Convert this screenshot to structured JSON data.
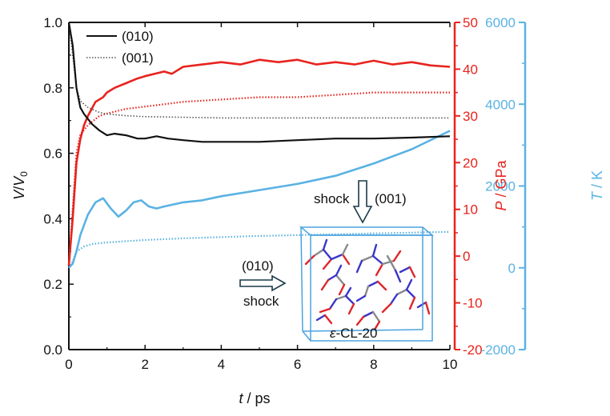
{
  "colors": {
    "black": "#111111",
    "red": "#e8231e",
    "blue": "#5ab2e3",
    "dotted_gray": "#555555",
    "crystal_box": "#4aa3e0",
    "atom_n": "#3b36c9",
    "atom_o": "#e0252a",
    "atom_c": "#8a8a8a"
  },
  "chart_data": {
    "type": "line",
    "x_axis": {
      "label_italic": "t",
      "label_rest": " / ps",
      "range": [
        0,
        10
      ],
      "ticks": [
        "0",
        "2",
        "4",
        "6",
        "8",
        "10"
      ]
    },
    "y_left": {
      "label_italic": "V",
      "label_mid": "/",
      "label_italic2": "V",
      "label_sub": "0",
      "range": [
        0.0,
        1.0
      ],
      "ticks": [
        "0.0",
        "0.2",
        "0.4",
        "0.6",
        "0.8",
        "1.0"
      ]
    },
    "y_right_p": {
      "label_italic": "P",
      "label_rest": " / GPa",
      "range": [
        -20,
        50
      ],
      "ticks": [
        "-20",
        "-10",
        "0",
        "10",
        "20",
        "30",
        "40",
        "50"
      ]
    },
    "y_right_t": {
      "label_italic": "T",
      "label_rest": " / K",
      "range": [
        -2000,
        6000
      ],
      "ticks": [
        "-2000",
        "0",
        "2000",
        "4000",
        "6000"
      ]
    },
    "legend": {
      "position": "top-left",
      "entries": [
        {
          "label": "(010)",
          "style": "solid"
        },
        {
          "label": "(001)",
          "style": "dotted"
        }
      ]
    },
    "series": [
      {
        "axis": "left",
        "direction": "(010)",
        "style": "solid",
        "color": "black",
        "x": [
          0,
          0.1,
          0.2,
          0.3,
          0.4,
          0.6,
          0.8,
          1.0,
          1.2,
          1.5,
          1.8,
          2.0,
          2.3,
          2.6,
          3.0,
          3.5,
          4.0,
          5.0,
          6.0,
          7.0,
          8.0,
          9.0,
          10.0
        ],
        "y": [
          1.0,
          0.93,
          0.8,
          0.74,
          0.72,
          0.69,
          0.67,
          0.655,
          0.66,
          0.655,
          0.645,
          0.645,
          0.652,
          0.645,
          0.64,
          0.635,
          0.635,
          0.635,
          0.64,
          0.645,
          0.645,
          0.648,
          0.652
        ]
      },
      {
        "axis": "left",
        "direction": "(001)",
        "style": "dotted",
        "color": "dotted_gray",
        "x": [
          0,
          0.1,
          0.2,
          0.3,
          0.5,
          0.8,
          1.0,
          1.5,
          2.0,
          3.0,
          4.0,
          5.0,
          6.0,
          7.0,
          8.0,
          9.0,
          10.0
        ],
        "y": [
          1.0,
          0.9,
          0.8,
          0.76,
          0.74,
          0.725,
          0.72,
          0.715,
          0.712,
          0.71,
          0.708,
          0.708,
          0.708,
          0.708,
          0.708,
          0.708,
          0.708
        ]
      },
      {
        "axis": "p",
        "direction": "(010)",
        "style": "solid",
        "color": "red",
        "x": [
          0,
          0.1,
          0.2,
          0.3,
          0.4,
          0.5,
          0.7,
          0.9,
          1.0,
          1.2,
          1.5,
          1.8,
          2.0,
          2.5,
          2.7,
          3.0,
          3.5,
          4.0,
          4.5,
          5.0,
          5.5,
          6.0,
          6.5,
          7.0,
          7.5,
          8.0,
          8.5,
          9.0,
          9.5,
          10.0
        ],
        "y": [
          -2,
          8,
          20,
          25,
          28,
          30,
          33,
          34,
          35,
          36,
          37,
          38,
          38.5,
          39.5,
          39,
          40.5,
          41,
          41.5,
          41,
          42,
          41.5,
          42,
          41,
          41.5,
          41,
          41.8,
          41,
          41.5,
          40.8,
          40.5
        ]
      },
      {
        "axis": "p",
        "direction": "(001)",
        "style": "dotted",
        "color": "red",
        "x": [
          0,
          0.1,
          0.2,
          0.3,
          0.5,
          0.8,
          1.0,
          1.5,
          2.0,
          2.5,
          3.0,
          4.0,
          5.0,
          6.0,
          7.0,
          8.0,
          9.0,
          10.0
        ],
        "y": [
          -2,
          10,
          22,
          26,
          28,
          30,
          30.5,
          31.5,
          32,
          32.5,
          33,
          33.5,
          34,
          34,
          34.5,
          35,
          35,
          35
        ]
      },
      {
        "axis": "t",
        "direction": "(010)",
        "style": "solid",
        "color": "blue",
        "x": [
          0,
          0.1,
          0.2,
          0.3,
          0.5,
          0.7,
          0.9,
          1.1,
          1.3,
          1.5,
          1.7,
          1.9,
          2.1,
          2.3,
          2.5,
          3.0,
          3.5,
          4.0,
          5.0,
          6.0,
          7.0,
          8.0,
          9.0,
          10.0
        ],
        "y": [
          0,
          100,
          400,
          800,
          1300,
          1600,
          1700,
          1450,
          1250,
          1400,
          1600,
          1650,
          1500,
          1450,
          1500,
          1600,
          1650,
          1750,
          1900,
          2050,
          2250,
          2550,
          2900,
          3350
        ]
      },
      {
        "axis": "t",
        "direction": "(001)",
        "style": "dotted",
        "color": "blue",
        "x": [
          0,
          0.1,
          0.2,
          0.4,
          0.6,
          1.0,
          1.5,
          2.0,
          3.0,
          4.0,
          5.0,
          6.0,
          7.0,
          8.0,
          9.0,
          10.0
        ],
        "y": [
          0,
          150,
          400,
          520,
          580,
          620,
          650,
          680,
          720,
          750,
          780,
          800,
          820,
          840,
          860,
          880
        ]
      }
    ],
    "annotations": {
      "shock_top": "shock",
      "dir_top": "(001)",
      "dir_left": "(010)",
      "shock_left": "shock",
      "crystal_prefix": "ε",
      "crystal_suffix": "-CL-20"
    }
  }
}
